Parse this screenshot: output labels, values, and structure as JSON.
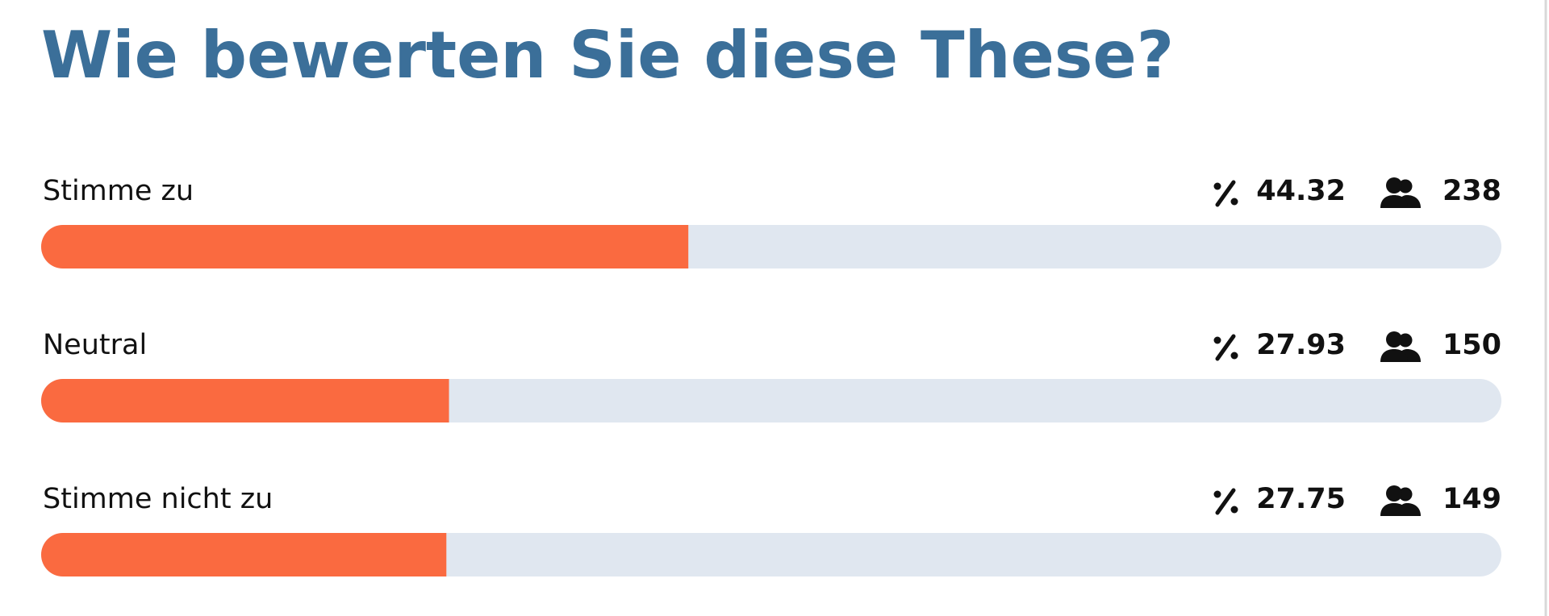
{
  "title": "Wie bewerten Sie diese These?",
  "options": [
    {
      "label": "Stimme zu",
      "percent": 44.32,
      "count": 238
    },
    {
      "label": "Neutral",
      "percent": 27.93,
      "count": 150
    },
    {
      "label": "Stimme nicht zu",
      "percent": 27.75,
      "count": 149
    }
  ]
}
